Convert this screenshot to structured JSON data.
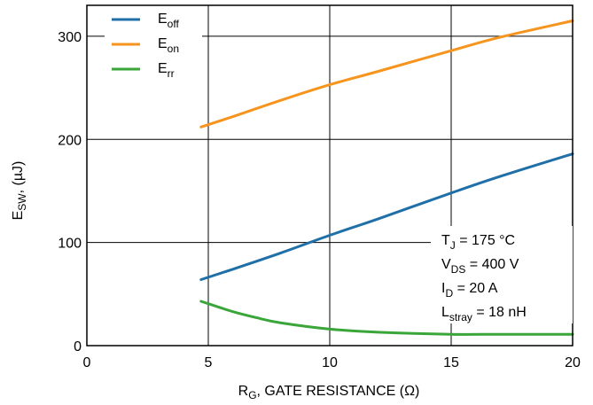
{
  "chart_data": {
    "type": "line",
    "title": "",
    "xlabel": {
      "main": "R",
      "sub": "G",
      "rest": ", GATE RESISTANCE (Ω)"
    },
    "ylabel": {
      "main": "E",
      "sub": "SW",
      "rest": ", (µJ)"
    },
    "xlim": [
      0,
      20
    ],
    "ylim": [
      0,
      330
    ],
    "xticks": [
      0,
      5,
      10,
      15,
      20
    ],
    "yticks": [
      0,
      100,
      200,
      300
    ],
    "grid": true,
    "legend_position": "top-left",
    "series": [
      {
        "name": {
          "main": "E",
          "sub": "off"
        },
        "color": "#1f6fa8",
        "x": [
          4.7,
          6,
          8,
          10,
          12,
          15,
          17,
          20
        ],
        "y": [
          64,
          74,
          90,
          107,
          123,
          148,
          164,
          186
        ]
      },
      {
        "name": {
          "main": "E",
          "sub": "on"
        },
        "color": "#f7941d",
        "x": [
          4.7,
          6,
          8,
          10,
          12,
          15,
          17,
          20
        ],
        "y": [
          212,
          222,
          238,
          253,
          266,
          286,
          299,
          315
        ]
      },
      {
        "name": {
          "main": "E",
          "sub": "rr"
        },
        "color": "#3aa639",
        "x": [
          4.7,
          6,
          7,
          8,
          10,
          12,
          15,
          17,
          20
        ],
        "y": [
          43,
          33,
          27,
          22,
          16,
          13,
          11,
          11,
          11
        ]
      }
    ],
    "annotations": [
      {
        "main": "T",
        "sub": "J",
        "rest": " = 175 °C"
      },
      {
        "main": "V",
        "sub": "DS",
        "rest": " = 400 V"
      },
      {
        "main": "I",
        "sub": "D",
        "rest": " = 20 A"
      },
      {
        "main": "L",
        "sub": "stray",
        "rest": " = 18 nH"
      }
    ]
  }
}
